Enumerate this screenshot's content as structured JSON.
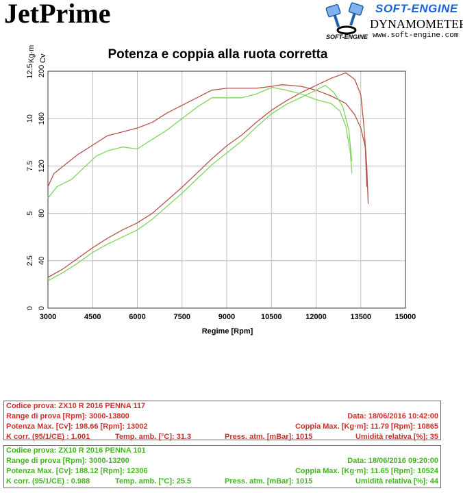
{
  "header": {
    "brand": "JetPrime",
    "logo_name": "SOFT-ENGINE",
    "logo_sub": "DYNAMOMETERS",
    "logo_url": "www.soft-engine.com",
    "logo_mark_text": "SOFT-ENGINE"
  },
  "colors": {
    "red": "#b5524c",
    "green": "#7fd35a"
  },
  "chart_data": {
    "type": "line",
    "title": "Potenza e coppia alla ruota corretta",
    "xlabel": "Regime [Rpm]",
    "xlim": [
      3000,
      15000
    ],
    "xticks": [
      "3000",
      "4500",
      "6000",
      "7500",
      "9000",
      "10500",
      "12000",
      "13500",
      "15000"
    ],
    "y_power": {
      "label": "Cv",
      "lim": [
        0,
        200
      ],
      "ticks": [
        "0",
        "40",
        "80",
        "120",
        "160",
        "200"
      ]
    },
    "y_torque": {
      "label": "Kg·m",
      "lim": [
        0,
        12.5
      ],
      "ticks": [
        "0",
        "2.5",
        "5",
        "7.5",
        "10",
        "12.5"
      ]
    },
    "grid": true,
    "series": [
      {
        "quantity": "Potenza",
        "run": "ZX10 R 2016 PENNA 117",
        "color": "#b5524c",
        "x": [
          3000,
          3500,
          4000,
          4500,
          5000,
          5500,
          6000,
          6500,
          7000,
          7500,
          8000,
          8500,
          9000,
          9500,
          10000,
          10500,
          11000,
          11500,
          12000,
          12500,
          13002,
          13300,
          13500,
          13600,
          13700,
          13750
        ],
        "y": [
          26,
          33,
          42,
          51,
          59,
          66,
          72,
          80,
          91,
          102,
          114,
          126,
          137,
          146,
          157,
          167,
          175,
          182,
          188,
          194,
          198.66,
          193,
          180,
          155,
          120,
          88
        ]
      },
      {
        "quantity": "Coppia",
        "run": "ZX10 R 2016 PENNA 117",
        "color": "#b5524c",
        "x": [
          3000,
          3200,
          3600,
          4000,
          4500,
          5000,
          5500,
          6000,
          6500,
          7000,
          7500,
          8000,
          8500,
          9000,
          9500,
          10000,
          10500,
          10865,
          11500,
          12000,
          12500,
          13000,
          13300,
          13500,
          13650,
          13700
        ],
        "y": [
          6.4,
          7.1,
          7.6,
          8.1,
          8.6,
          9.1,
          9.3,
          9.5,
          9.8,
          10.3,
          10.7,
          11.1,
          11.5,
          11.6,
          11.6,
          11.6,
          11.7,
          11.79,
          11.7,
          11.5,
          11.2,
          10.8,
          10.2,
          9.5,
          8.5,
          6.4
        ]
      },
      {
        "quantity": "Potenza",
        "run": "ZX10 R 2016 PENNA 101",
        "color": "#7fd35a",
        "x": [
          3000,
          3500,
          4000,
          4500,
          5000,
          5500,
          6000,
          6500,
          7000,
          7500,
          8000,
          8500,
          9000,
          9500,
          10000,
          10500,
          11000,
          11500,
          12000,
          12306,
          12600,
          12900,
          13100,
          13200
        ],
        "y": [
          23,
          30,
          38,
          47,
          54,
          60,
          66,
          75,
          86,
          97,
          109,
          121,
          131,
          141,
          153,
          164,
          172,
          178,
          184,
          188.12,
          182,
          170,
          150,
          124
        ]
      },
      {
        "quantity": "Coppia",
        "run": "ZX10 R 2016 PENNA 101",
        "color": "#7fd35a",
        "x": [
          3000,
          3300,
          3800,
          4200,
          4600,
          5000,
          5500,
          6000,
          6500,
          7000,
          7500,
          8000,
          8500,
          9000,
          9500,
          10000,
          10524,
          11000,
          11500,
          12000,
          12500,
          12800,
          13000,
          13150,
          13200
        ],
        "y": [
          5.8,
          6.4,
          6.8,
          7.4,
          8.0,
          8.3,
          8.5,
          8.4,
          8.9,
          9.4,
          10.0,
          10.6,
          11.1,
          11.1,
          11.1,
          11.3,
          11.65,
          11.5,
          11.3,
          11.0,
          10.8,
          10.4,
          9.6,
          8.2,
          7.1
        ]
      }
    ]
  },
  "panels": {
    "red": {
      "line1": "Codice prova: ZX10 R 2016 PENNA 117",
      "line2_left": "Range di prova [Rpm]: 3000-13800",
      "line2_right": "Data: 18/06/2016   10:42:00",
      "line3_left": "Potenza Max. [Cv]: 198.66   [Rpm]: 13002",
      "line3_right": "Coppia Max. [Kg·m]: 11.79   [Rpm]: 10865",
      "line4_a": "K corr. (95/1/CE) : 1.001",
      "line4_b": "Temp. amb. [°C]: 31.3",
      "line4_c": "Press. atm. [mBar]: 1015",
      "line4_d": "Umidità relativa [%]: 35"
    },
    "green": {
      "line1": "Codice prova: ZX10 R 2016 PENNA 101",
      "line2_left": "Range di prova [Rpm]: 3000-13200",
      "line2_right": "Data: 18/06/2016   09:20:00",
      "line3_left": "Potenza Max. [Cv]: 188.12   [Rpm]: 12306",
      "line3_right": "Coppia Max. [Kg·m]: 11.65   [Rpm]: 10524",
      "line4_a": "K corr. (95/1/CE) : 0.988",
      "line4_b": "Temp. amb. [°C]: 25.5",
      "line4_c": "Press. atm. [mBar]: 1015",
      "line4_d": "Umidità relativa [%]: 44"
    }
  }
}
